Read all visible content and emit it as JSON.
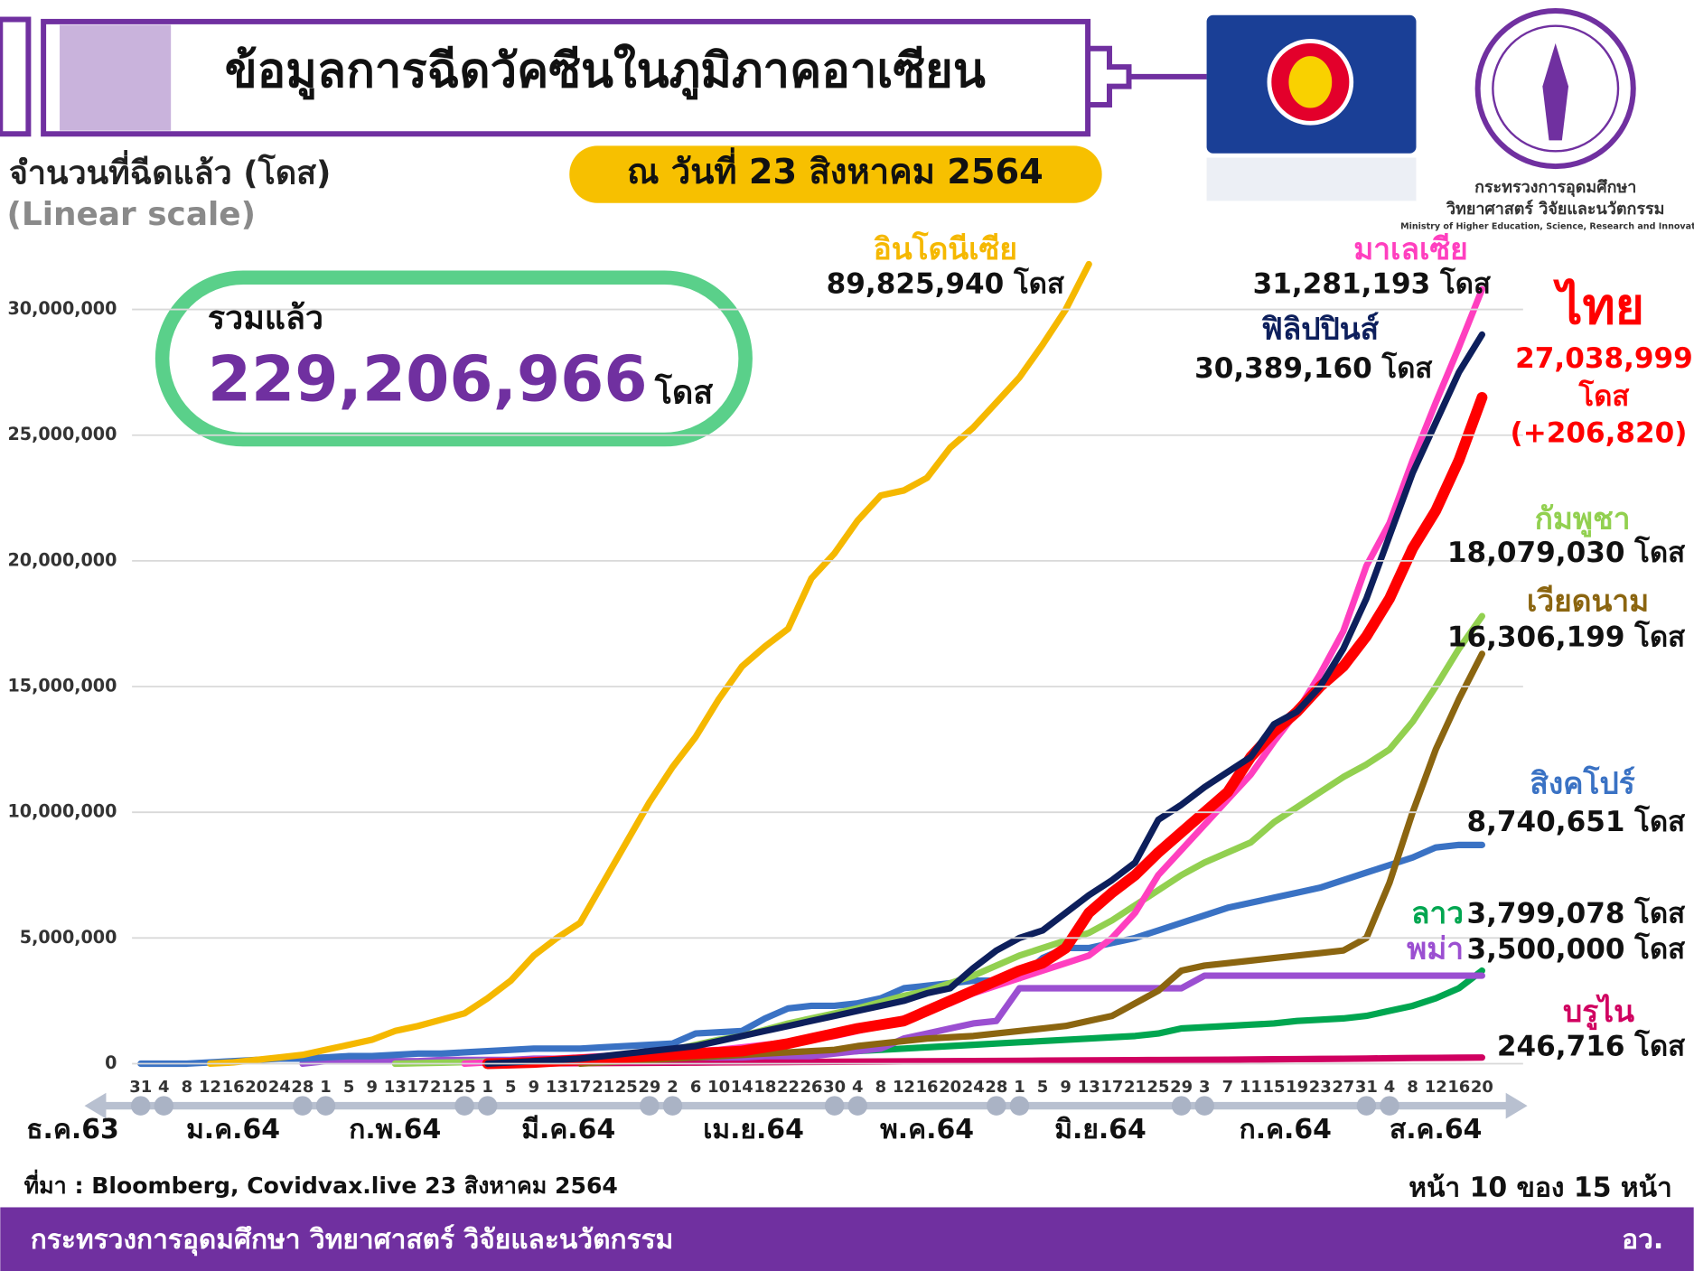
{
  "chart_data": {
    "type": "line",
    "title": "ข้อมูลการฉีดวัคซีนในภูมิภาคอาเซียน",
    "date_note": "ณ วันที่ 23 สิงหาคม 2564",
    "y_axis_label": "จำนวนที่ฉีดแล้ว (โดส)",
    "scale_note": "(Linear scale)",
    "total_label": "รวมแล้ว",
    "total_value": "229,206,966",
    "total_unit": "โดส",
    "source": "ที่มา : Bloomberg, Covidvax.live 23 สิงหาคม 2564",
    "page_note": "หน้า 10 ของ 15 หน้า",
    "footer_org": "กระทรวงการอุดมศึกษา วิทยาศาสตร์ วิจัยและนวัตกรรม",
    "footer_short": "อว.",
    "logo_lines": [
      "กระทรวงการอุดมศึกษา",
      "วิทยาศาสตร์ วิจัยและนวัตกรรม",
      "Ministry of Higher Education, Science, Research and Innovation"
    ],
    "months": [
      "ธ.ค.63",
      "ม.ค.64",
      "ก.พ.64",
      "มี.ค.64",
      "เม.ย.64",
      "พ.ค.64",
      "มิ.ย.64",
      "ก.ค.64",
      "ส.ค.64"
    ],
    "categories": [
      "31",
      "4",
      "8",
      "12",
      "16",
      "20",
      "24",
      "28",
      "1",
      "5",
      "9",
      "13",
      "17",
      "21",
      "25",
      "1",
      "5",
      "9",
      "13",
      "17",
      "21",
      "25",
      "29",
      "2",
      "6",
      "10",
      "14",
      "18",
      "22",
      "26",
      "30",
      "4",
      "8",
      "12",
      "16",
      "20",
      "24",
      "28",
      "1",
      "5",
      "9",
      "13",
      "17",
      "21",
      "25",
      "29",
      "3",
      "7",
      "11",
      "15",
      "19",
      "23",
      "27",
      "31",
      "4",
      "8",
      "12",
      "16",
      "20"
    ],
    "ylim": [
      0,
      32000000
    ],
    "yticks": [
      0,
      {
        "value": 5000000,
        "label": "5,000,000"
      },
      {
        "value": 10000000,
        "label": "10,000,000"
      },
      {
        "value": 15000000,
        "label": "15,000,000"
      },
      {
        "value": 20000000,
        "label": "20,000,000"
      },
      {
        "value": 25000000,
        "label": "25,000,000"
      },
      {
        "value": 30000000,
        "label": "30,000,000"
      }
    ],
    "grid": true,
    "series": [
      {
        "name": "อินโดนีเซีย",
        "color": "#f5b800",
        "label_color": "#111111",
        "labels": [
          "89,825,940 โดส"
        ],
        "values": [
          null,
          null,
          null,
          0,
          50000,
          150000,
          250000,
          350000,
          550000,
          750000,
          950000,
          1300000,
          1500000,
          1750000,
          2000000,
          2600000,
          3300000,
          4300000,
          5000000,
          5600000,
          7200000,
          8800000,
          10400000,
          11800000,
          13000000,
          14500000,
          15800000,
          16600000,
          17300000,
          19300000,
          20300000,
          21600000,
          22600000,
          22800000,
          23300000,
          24500000,
          25300000,
          26300000,
          27300000,
          28600000,
          30000000,
          31800000,
          null,
          null,
          null,
          null,
          null,
          null,
          null,
          null,
          null,
          null,
          null,
          null,
          null,
          null,
          null,
          null,
          null
        ]
      },
      {
        "name": "มาเลเซีย",
        "color": "#ff3fbf",
        "label_color": "#111111",
        "labels": [
          "31,281,193 โดส"
        ],
        "values": [
          null,
          null,
          null,
          null,
          null,
          null,
          null,
          null,
          null,
          null,
          null,
          null,
          null,
          null,
          0,
          50000,
          100000,
          150000,
          200000,
          250000,
          300000,
          350000,
          400000,
          450000,
          500000,
          550000,
          650000,
          750000,
          850000,
          950000,
          1100000,
          1300000,
          1500000,
          1800000,
          2100000,
          2400000,
          2800000,
          3100000,
          3400000,
          3700000,
          4000000,
          4300000,
          5000000,
          6000000,
          7500000,
          8500000,
          9500000,
          10500000,
          11500000,
          12800000,
          14000000,
          15500000,
          17200000,
          19800000,
          21500000,
          24000000,
          26300000,
          28500000,
          30800000
        ]
      },
      {
        "name": "ฟิลิปปินส์",
        "color": "#0d1f5c",
        "label_color": "#111111",
        "labels": [
          "30,389,160 โดส"
        ],
        "values": [
          null,
          null,
          null,
          null,
          null,
          null,
          null,
          null,
          null,
          null,
          null,
          null,
          null,
          null,
          null,
          0,
          50000,
          100000,
          150000,
          200000,
          300000,
          400000,
          500000,
          600000,
          700000,
          900000,
          1100000,
          1300000,
          1500000,
          1700000,
          1900000,
          2100000,
          2300000,
          2500000,
          2800000,
          3000000,
          3800000,
          4500000,
          5000000,
          5300000,
          6000000,
          6700000,
          7300000,
          8000000,
          9700000,
          10300000,
          11000000,
          11600000,
          12200000,
          13500000,
          14000000,
          15000000,
          16500000,
          18500000,
          21000000,
          23500000,
          25500000,
          27500000,
          29000000
        ]
      },
      {
        "name": "ไทย",
        "color": "#ff0000",
        "label_color": "#ff0000",
        "labels": [
          "27,038,999",
          "โดส",
          "(+206,820)"
        ],
        "values": [
          null,
          null,
          null,
          null,
          null,
          null,
          null,
          null,
          null,
          null,
          null,
          null,
          null,
          null,
          null,
          0,
          20000,
          50000,
          100000,
          150000,
          200000,
          250000,
          300000,
          350000,
          400000,
          450000,
          500000,
          650000,
          800000,
          1000000,
          1200000,
          1400000,
          1550000,
          1700000,
          2100000,
          2500000,
          2900000,
          3300000,
          3700000,
          4000000,
          4600000,
          6000000,
          6800000,
          7500000,
          8400000,
          9200000,
          10000000,
          10800000,
          12200000,
          13200000,
          14000000,
          15000000,
          15800000,
          17000000,
          18500000,
          20500000,
          22000000,
          24000000,
          26500000
        ]
      },
      {
        "name": "กัมพูชา",
        "color": "#92d050",
        "label_color": "#111111",
        "labels": [
          "18,079,030 โดส"
        ],
        "values": [
          null,
          null,
          null,
          null,
          null,
          null,
          null,
          null,
          null,
          null,
          null,
          0,
          20000,
          40000,
          60000,
          80000,
          100000,
          130000,
          160000,
          200000,
          250000,
          300000,
          400000,
          550000,
          750000,
          950000,
          1100000,
          1350000,
          1600000,
          1800000,
          2000000,
          2200000,
          2450000,
          2700000,
          2900000,
          3200000,
          3500000,
          3900000,
          4300000,
          4600000,
          4900000,
          5200000,
          5700000,
          6300000,
          6900000,
          7500000,
          8000000,
          8400000,
          8800000,
          9600000,
          10200000,
          10800000,
          11400000,
          11900000,
          12500000,
          13600000,
          15000000,
          16500000,
          17800000
        ]
      },
      {
        "name": "เวียดนาม",
        "color": "#8b6510",
        "label_color": "#111111",
        "labels": [
          "16,306,199 โดส"
        ],
        "values": [
          null,
          null,
          null,
          null,
          null,
          null,
          null,
          null,
          null,
          null,
          null,
          null,
          null,
          null,
          null,
          null,
          null,
          null,
          null,
          0,
          50000,
          100000,
          150000,
          200000,
          250000,
          300000,
          350000,
          400000,
          450000,
          500000,
          550000,
          700000,
          800000,
          900000,
          1000000,
          1050000,
          1100000,
          1200000,
          1300000,
          1400000,
          1500000,
          1700000,
          1900000,
          2400000,
          2900000,
          3700000,
          3900000,
          4000000,
          4100000,
          4200000,
          4300000,
          4400000,
          4500000,
          5000000,
          7200000,
          10000000,
          12500000,
          14500000,
          16300000
        ]
      },
      {
        "name": "สิงคโปร์",
        "color": "#3a72c4",
        "label_color": "#111111",
        "labels": [
          "8,740,651 โดส"
        ],
        "values": [
          0,
          0,
          0,
          50000,
          100000,
          150000,
          200000,
          200000,
          250000,
          300000,
          300000,
          350000,
          400000,
          400000,
          450000,
          500000,
          550000,
          600000,
          600000,
          600000,
          650000,
          700000,
          750000,
          800000,
          1200000,
          1250000,
          1300000,
          1800000,
          2200000,
          2300000,
          2300000,
          2400000,
          2600000,
          3000000,
          3100000,
          3200000,
          3300000,
          3300000,
          3400000,
          4200000,
          4600000,
          4600000,
          4800000,
          5000000,
          5300000,
          5600000,
          5900000,
          6200000,
          6400000,
          6600000,
          6800000,
          7000000,
          7300000,
          7600000,
          7900000,
          8200000,
          8600000,
          8700000,
          8700000
        ]
      },
      {
        "name": "ลาว",
        "color": "#00a650",
        "label_color": "#111111",
        "labels": [
          "3,799,078 โดส"
        ],
        "values": [
          null,
          null,
          null,
          null,
          null,
          null,
          null,
          null,
          null,
          null,
          null,
          null,
          null,
          null,
          null,
          0,
          30000,
          60000,
          100000,
          130000,
          160000,
          200000,
          220000,
          250000,
          280000,
          300000,
          330000,
          360000,
          400000,
          430000,
          470000,
          500000,
          550000,
          600000,
          650000,
          700000,
          750000,
          800000,
          850000,
          900000,
          950000,
          1000000,
          1050000,
          1100000,
          1200000,
          1400000,
          1450000,
          1500000,
          1550000,
          1600000,
          1700000,
          1750000,
          1800000,
          1900000,
          2100000,
          2300000,
          2600000,
          3000000,
          3700000
        ]
      },
      {
        "name": "พม่า",
        "color": "#9b4fd1",
        "label_color": "#111111",
        "labels": [
          "3,500,000 โดส"
        ],
        "values": [
          null,
          null,
          null,
          null,
          null,
          null,
          null,
          0,
          100000,
          100000,
          100000,
          100000,
          100000,
          150000,
          150000,
          150000,
          150000,
          200000,
          200000,
          200000,
          200000,
          200000,
          250000,
          250000,
          250000,
          250000,
          250000,
          300000,
          300000,
          300000,
          400000,
          500000,
          600000,
          1000000,
          1200000,
          1400000,
          1600000,
          1700000,
          3000000,
          3000000,
          3000000,
          3000000,
          3000000,
          3000000,
          3000000,
          3000000,
          3500000,
          3500000,
          3500000,
          3500000,
          3500000,
          3500000,
          3500000,
          3500000,
          3500000,
          3500000,
          3500000,
          3500000,
          3500000
        ]
      },
      {
        "name": "บรูไน",
        "color": "#d00060",
        "label_color": "#111111",
        "labels": [
          "246,716 โดส"
        ],
        "values": [
          null,
          null,
          null,
          null,
          null,
          null,
          null,
          null,
          null,
          null,
          null,
          null,
          null,
          null,
          null,
          0,
          5000,
          10000,
          15000,
          20000,
          25000,
          30000,
          35000,
          40000,
          45000,
          50000,
          55000,
          60000,
          65000,
          70000,
          75000,
          80000,
          85000,
          90000,
          95000,
          100000,
          105000,
          110000,
          115000,
          120000,
          125000,
          130000,
          135000,
          140000,
          145000,
          150000,
          155000,
          160000,
          167000,
          174000,
          181000,
          188000,
          195000,
          205000,
          215000,
          225000,
          232000,
          238000,
          244000
        ]
      }
    ]
  }
}
